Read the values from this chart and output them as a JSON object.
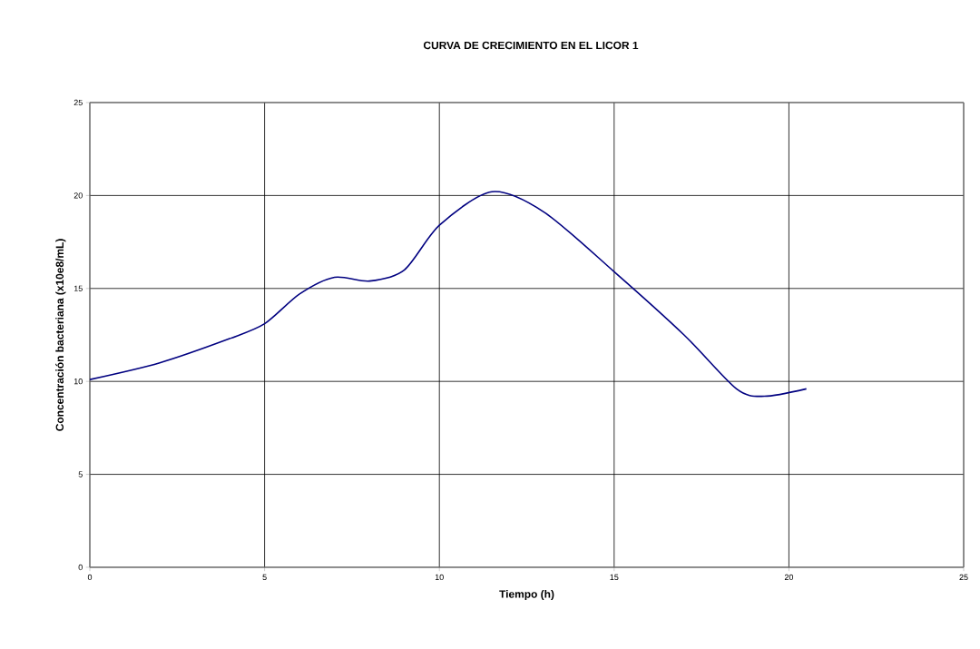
{
  "chart_data": {
    "type": "line",
    "title": "CURVA DE CRECIMIENTO EN EL LICOR 1",
    "xlabel": "Tiempo (h)",
    "ylabel": "Concentración bacteriana (x10e8/mL)",
    "series": [
      {
        "color": "#000080",
        "x": [
          0,
          2,
          4,
          5,
          6,
          7,
          8,
          9,
          10,
          11.5,
          13,
          15,
          17,
          18.5,
          19.3,
          20.5
        ],
        "values": [
          10.1,
          11,
          12.3,
          13.1,
          14.7,
          15.6,
          15.4,
          16,
          18.4,
          20.2,
          19.1,
          15.9,
          12.5,
          9.6,
          9.2,
          9.6
        ]
      }
    ],
    "xlim": [
      0,
      25
    ],
    "ylim": [
      0,
      25
    ],
    "xticks": [
      0,
      5,
      10,
      15,
      20,
      25
    ],
    "yticks": [
      0,
      5,
      10,
      15,
      20,
      25
    ],
    "grid": true,
    "marker": "none",
    "line_style": "solid"
  }
}
